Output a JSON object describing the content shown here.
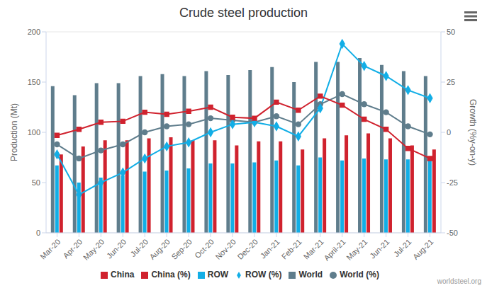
{
  "chart_data": {
    "type": "bar",
    "title": "Crude steel production",
    "y_label": "Production (Mt)",
    "y2_label": "Growth (%y-on-y)",
    "annotations": [
      "worldsteel.org"
    ],
    "categories": [
      "Mar-20",
      "Apr-20",
      "May-20",
      "Jun-20",
      "Jul-20",
      "Aug-20",
      "Sep-20",
      "Oct-20",
      "Nov-20",
      "Dec-20",
      "Jan-21",
      "Feb-21",
      "Mar-21",
      "April-21",
      "May-21",
      "Jun-21",
      "Jul-21",
      "Aug-21"
    ],
    "series": [
      {
        "name": "World",
        "type": "bar",
        "color": "#5f7d8c",
        "values": [
          146,
          137,
          149,
          149,
          156,
          158,
          156,
          161,
          157,
          162,
          165,
          150,
          170,
          170,
          174,
          167,
          161,
          156
        ]
      },
      {
        "name": "ROW",
        "type": "bar",
        "color": "#12aee6",
        "values": [
          67,
          50,
          55,
          57,
          61,
          62,
          64,
          69,
          69,
          70,
          72,
          67,
          75,
          72,
          74,
          73,
          73,
          73
        ]
      },
      {
        "name": "China",
        "type": "bar",
        "color": "#d0222e",
        "values": [
          78,
          86,
          92,
          92,
          94,
          95,
          92,
          92,
          87,
          91,
          91,
          83,
          94,
          97,
          99,
          94,
          87,
          83
        ]
      },
      {
        "name": "World (%)",
        "type": "line",
        "axis": "y2",
        "marker": "circle",
        "color": "#5f7d8c",
        "values": [
          -6,
          -13,
          -9,
          -6,
          0,
          3,
          4,
          7,
          6,
          5,
          8,
          4,
          14,
          19,
          14,
          10,
          3,
          -1
        ]
      },
      {
        "name": "ROW (%)",
        "type": "line",
        "axis": "y2",
        "marker": "diamond",
        "color": "#12aee6",
        "values": [
          -11,
          -31,
          -25,
          -20,
          -13,
          -7,
          -5,
          0,
          4,
          5,
          3,
          -2,
          12,
          44,
          33,
          28,
          21,
          17
        ]
      },
      {
        "name": "China (%)",
        "type": "line",
        "axis": "y2",
        "marker": "square",
        "color": "#d0222e",
        "values": [
          -1.5,
          1.5,
          5,
          5.5,
          10,
          9,
          10.5,
          12.5,
          7.5,
          7,
          15,
          11,
          18,
          13.5,
          6.5,
          1.5,
          -8,
          -13
        ]
      }
    ],
    "ylim": [
      0,
      200
    ],
    "yticks": [
      0,
      50,
      100,
      150,
      200
    ],
    "y2lim": [
      -50,
      50
    ],
    "y2ticks": [
      -50,
      -25,
      0,
      25,
      50
    ],
    "grid": true,
    "legend": "bottom"
  }
}
